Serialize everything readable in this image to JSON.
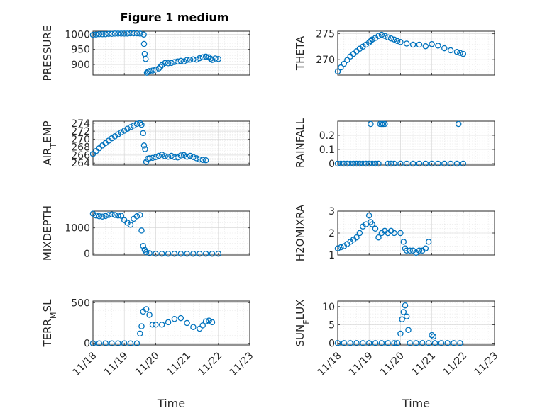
{
  "figure": {
    "title": "Figure 1 medium",
    "marker_color": "#0072bd"
  },
  "chart_data": [
    {
      "type": "scatter",
      "ylabel": "PRESSURE",
      "ylim": [
        865,
        1010
      ],
      "yticks": [
        900,
        950,
        1000
      ],
      "yticklabels": [
        "900",
        "950",
        "1000"
      ],
      "xlim": [
        0,
        5
      ],
      "xticks": [],
      "xticklabels": [],
      "points": [
        [
          0.0,
          998
        ],
        [
          0.1,
          999
        ],
        [
          0.2,
          1000
        ],
        [
          0.3,
          1000
        ],
        [
          0.4,
          1000
        ],
        [
          0.5,
          1001
        ],
        [
          0.6,
          1001
        ],
        [
          0.7,
          1002
        ],
        [
          0.8,
          1002
        ],
        [
          0.9,
          1002
        ],
        [
          1.0,
          1002
        ],
        [
          1.1,
          1002
        ],
        [
          1.2,
          1003
        ],
        [
          1.3,
          1003
        ],
        [
          1.4,
          1003
        ],
        [
          1.5,
          1002
        ],
        [
          1.62,
          999
        ],
        [
          1.63,
          968
        ],
        [
          1.65,
          935
        ],
        [
          1.68,
          918
        ],
        [
          1.72,
          873
        ],
        [
          1.76,
          876
        ],
        [
          1.8,
          878
        ],
        [
          1.9,
          880
        ],
        [
          2.0,
          883
        ],
        [
          2.1,
          887
        ],
        [
          2.15,
          892
        ],
        [
          2.2,
          898
        ],
        [
          2.3,
          905
        ],
        [
          2.4,
          904
        ],
        [
          2.5,
          905
        ],
        [
          2.6,
          908
        ],
        [
          2.7,
          910
        ],
        [
          2.8,
          912
        ],
        [
          2.9,
          910
        ],
        [
          3.0,
          915
        ],
        [
          3.1,
          916
        ],
        [
          3.2,
          917
        ],
        [
          3.3,
          916
        ],
        [
          3.4,
          921
        ],
        [
          3.5,
          924
        ],
        [
          3.6,
          926
        ],
        [
          3.7,
          924
        ],
        [
          3.75,
          919
        ],
        [
          3.8,
          915
        ],
        [
          3.9,
          920
        ],
        [
          4.0,
          918
        ]
      ]
    },
    {
      "type": "scatter",
      "ylabel": "THETA",
      "ylim": [
        267,
        275.5
      ],
      "yticks": [
        270,
        275
      ],
      "yticklabels": [
        "270",
        "275"
      ],
      "xlim": [
        0,
        5
      ],
      "xticks": [],
      "xticklabels": [],
      "points": [
        [
          0.0,
          267.7
        ],
        [
          0.1,
          268.5
        ],
        [
          0.2,
          269.2
        ],
        [
          0.3,
          269.9
        ],
        [
          0.4,
          270.6
        ],
        [
          0.5,
          271.1
        ],
        [
          0.6,
          271.6
        ],
        [
          0.7,
          272.1
        ],
        [
          0.8,
          272.5
        ],
        [
          0.9,
          272.9
        ],
        [
          1.0,
          273.3
        ],
        [
          1.05,
          273.6
        ],
        [
          1.1,
          273.9
        ],
        [
          1.2,
          274.2
        ],
        [
          1.3,
          274.6
        ],
        [
          1.4,
          274.8
        ],
        [
          1.5,
          274.6
        ],
        [
          1.6,
          274.3
        ],
        [
          1.7,
          274.1
        ],
        [
          1.8,
          273.9
        ],
        [
          1.9,
          273.6
        ],
        [
          2.0,
          273.4
        ],
        [
          2.2,
          273.1
        ],
        [
          2.4,
          272.9
        ],
        [
          2.6,
          272.9
        ],
        [
          2.8,
          272.6
        ],
        [
          3.0,
          273.0
        ],
        [
          3.2,
          272.7
        ],
        [
          3.4,
          272.2
        ],
        [
          3.6,
          271.8
        ],
        [
          3.8,
          271.5
        ],
        [
          3.9,
          271.3
        ],
        [
          4.0,
          271.1
        ]
      ]
    },
    {
      "type": "scatter",
      "ylabel": "AIR_TEMP",
      "ylim": [
        263.5,
        274.5
      ],
      "yticks": [
        264,
        266,
        268,
        270,
        272,
        274
      ],
      "yticklabels": [
        "264",
        "266",
        "268",
        "270",
        "272",
        "274"
      ],
      "xlim": [
        0,
        5
      ],
      "xticks": [],
      "xticklabels": [],
      "points": [
        [
          0.0,
          266.3
        ],
        [
          0.1,
          267.0
        ],
        [
          0.2,
          267.7
        ],
        [
          0.3,
          268.4
        ],
        [
          0.4,
          269.0
        ],
        [
          0.5,
          269.6
        ],
        [
          0.6,
          270.2
        ],
        [
          0.7,
          270.7
        ],
        [
          0.8,
          271.2
        ],
        [
          0.9,
          271.7
        ],
        [
          1.0,
          272.1
        ],
        [
          1.1,
          272.6
        ],
        [
          1.2,
          273.0
        ],
        [
          1.3,
          273.4
        ],
        [
          1.4,
          273.8
        ],
        [
          1.5,
          274.0
        ],
        [
          1.55,
          273.6
        ],
        [
          1.6,
          271.5
        ],
        [
          1.63,
          268.4
        ],
        [
          1.66,
          267.5
        ],
        [
          1.7,
          264.3
        ],
        [
          1.75,
          265.1
        ],
        [
          1.8,
          265.2
        ],
        [
          1.9,
          265.3
        ],
        [
          2.0,
          265.5
        ],
        [
          2.1,
          265.8
        ],
        [
          2.2,
          266.1
        ],
        [
          2.3,
          265.7
        ],
        [
          2.4,
          265.6
        ],
        [
          2.5,
          265.8
        ],
        [
          2.6,
          265.5
        ],
        [
          2.7,
          265.4
        ],
        [
          2.8,
          265.9
        ],
        [
          2.9,
          266.0
        ],
        [
          3.0,
          265.6
        ],
        [
          3.1,
          265.8
        ],
        [
          3.2,
          265.5
        ],
        [
          3.3,
          265.2
        ],
        [
          3.4,
          264.9
        ],
        [
          3.5,
          264.8
        ],
        [
          3.6,
          264.7
        ]
      ]
    },
    {
      "type": "scatter",
      "ylabel": "RAINFALL",
      "ylim": [
        -0.01,
        0.3
      ],
      "yticks": [
        0,
        0.1,
        0.2
      ],
      "yticklabels": [
        "0",
        "0.1",
        "0.2"
      ],
      "xlim": [
        0,
        5
      ],
      "xticks": [],
      "xticklabels": [],
      "points": [
        [
          0.0,
          0
        ],
        [
          0.1,
          0
        ],
        [
          0.2,
          0
        ],
        [
          0.3,
          0
        ],
        [
          0.4,
          0
        ],
        [
          0.5,
          0
        ],
        [
          0.6,
          0
        ],
        [
          0.7,
          0
        ],
        [
          0.8,
          0
        ],
        [
          0.9,
          0
        ],
        [
          1.0,
          0
        ],
        [
          1.05,
          0.28
        ],
        [
          1.1,
          0
        ],
        [
          1.2,
          0
        ],
        [
          1.3,
          0
        ],
        [
          1.35,
          0.28
        ],
        [
          1.4,
          0.28
        ],
        [
          1.45,
          0.28
        ],
        [
          1.5,
          0.28
        ],
        [
          1.6,
          0
        ],
        [
          1.7,
          0
        ],
        [
          1.8,
          0
        ],
        [
          2.0,
          0
        ],
        [
          2.2,
          0
        ],
        [
          2.4,
          0
        ],
        [
          2.6,
          0
        ],
        [
          2.8,
          0
        ],
        [
          3.0,
          0
        ],
        [
          3.2,
          0
        ],
        [
          3.4,
          0
        ],
        [
          3.6,
          0
        ],
        [
          3.8,
          0
        ],
        [
          3.85,
          0.28
        ],
        [
          4.0,
          0
        ]
      ]
    },
    {
      "type": "scatter",
      "ylabel": "MIXDEPTH",
      "ylim": [
        -50,
        1650
      ],
      "yticks": [
        0,
        1000
      ],
      "yticklabels": [
        "0",
        "1000"
      ],
      "xlim": [
        0,
        5
      ],
      "xticks": [],
      "xticklabels": [],
      "points": [
        [
          0.0,
          1550
        ],
        [
          0.1,
          1480
        ],
        [
          0.2,
          1450
        ],
        [
          0.3,
          1440
        ],
        [
          0.4,
          1460
        ],
        [
          0.5,
          1500
        ],
        [
          0.6,
          1520
        ],
        [
          0.7,
          1500
        ],
        [
          0.8,
          1480
        ],
        [
          0.9,
          1470
        ],
        [
          1.0,
          1300
        ],
        [
          1.1,
          1200
        ],
        [
          1.2,
          1120
        ],
        [
          1.3,
          1350
        ],
        [
          1.4,
          1450
        ],
        [
          1.5,
          1500
        ],
        [
          1.55,
          900
        ],
        [
          1.6,
          300
        ],
        [
          1.65,
          150
        ],
        [
          1.7,
          60
        ],
        [
          1.8,
          20
        ],
        [
          2.0,
          0
        ],
        [
          2.2,
          0
        ],
        [
          2.4,
          0
        ],
        [
          2.6,
          0
        ],
        [
          2.8,
          0
        ],
        [
          3.0,
          0
        ],
        [
          3.2,
          0
        ],
        [
          3.4,
          0
        ],
        [
          3.6,
          0
        ],
        [
          3.8,
          0
        ],
        [
          4.0,
          0
        ]
      ]
    },
    {
      "type": "scatter",
      "ylabel": "H2OMIXRA",
      "ylim": [
        1.0,
        3.0
      ],
      "yticks": [
        1,
        2,
        3
      ],
      "yticklabels": [
        "1",
        "2",
        "3"
      ],
      "xlim": [
        0,
        5
      ],
      "xticks": [],
      "xticklabels": [],
      "points": [
        [
          0.0,
          1.3
        ],
        [
          0.1,
          1.35
        ],
        [
          0.2,
          1.4
        ],
        [
          0.3,
          1.5
        ],
        [
          0.4,
          1.6
        ],
        [
          0.5,
          1.7
        ],
        [
          0.6,
          1.8
        ],
        [
          0.7,
          2.0
        ],
        [
          0.8,
          2.3
        ],
        [
          0.9,
          2.4
        ],
        [
          1.0,
          2.8
        ],
        [
          1.05,
          2.5
        ],
        [
          1.1,
          2.4
        ],
        [
          1.2,
          2.2
        ],
        [
          1.3,
          1.8
        ],
        [
          1.4,
          2.0
        ],
        [
          1.5,
          2.1
        ],
        [
          1.6,
          2.0
        ],
        [
          1.7,
          2.1
        ],
        [
          1.8,
          2.0
        ],
        [
          2.0,
          2.0
        ],
        [
          2.1,
          1.6
        ],
        [
          2.15,
          1.3
        ],
        [
          2.2,
          1.2
        ],
        [
          2.3,
          1.2
        ],
        [
          2.4,
          1.2
        ],
        [
          2.5,
          1.1
        ],
        [
          2.6,
          1.2
        ],
        [
          2.7,
          1.2
        ],
        [
          2.8,
          1.3
        ],
        [
          2.9,
          1.6
        ]
      ]
    },
    {
      "type": "scatter",
      "ylabel": "TERR_MSL",
      "ylim": [
        -20,
        520
      ],
      "yticks": [
        0,
        500
      ],
      "yticklabels": [
        "0",
        "500"
      ],
      "xlim": [
        0,
        5
      ],
      "xticks": [
        0,
        1,
        2,
        3,
        4,
        5
      ],
      "xticklabels": [
        "11/18",
        "11/19",
        "11/20",
        "11/21",
        "11/22",
        "11/23"
      ],
      "xlabel": "Time",
      "points": [
        [
          0.0,
          0
        ],
        [
          0.2,
          0
        ],
        [
          0.4,
          0
        ],
        [
          0.6,
          0
        ],
        [
          0.8,
          0
        ],
        [
          1.0,
          0
        ],
        [
          1.2,
          0
        ],
        [
          1.4,
          0
        ],
        [
          1.5,
          120
        ],
        [
          1.55,
          210
        ],
        [
          1.6,
          390
        ],
        [
          1.7,
          420
        ],
        [
          1.8,
          350
        ],
        [
          1.9,
          230
        ],
        [
          2.0,
          230
        ],
        [
          2.2,
          230
        ],
        [
          2.4,
          260
        ],
        [
          2.6,
          300
        ],
        [
          2.8,
          310
        ],
        [
          3.0,
          250
        ],
        [
          3.2,
          200
        ],
        [
          3.4,
          180
        ],
        [
          3.5,
          220
        ],
        [
          3.6,
          270
        ],
        [
          3.7,
          280
        ],
        [
          3.8,
          260
        ]
      ]
    },
    {
      "type": "scatter",
      "ylabel": "SUN_FLUX",
      "ylim": [
        -0.5,
        11.5
      ],
      "yticks": [
        0,
        5,
        10
      ],
      "yticklabels": [
        "0",
        "5",
        "10"
      ],
      "xlim": [
        0,
        5
      ],
      "xticks": [
        0,
        1,
        2,
        3,
        4,
        5
      ],
      "xticklabels": [
        "11/18",
        "11/19",
        "11/20",
        "11/21",
        "11/22",
        "11/23"
      ],
      "xlabel": "Time",
      "points": [
        [
          0.0,
          0
        ],
        [
          0.2,
          0
        ],
        [
          0.4,
          0
        ],
        [
          0.6,
          0
        ],
        [
          0.8,
          0
        ],
        [
          1.0,
          0
        ],
        [
          1.2,
          0
        ],
        [
          1.4,
          0
        ],
        [
          1.6,
          0
        ],
        [
          1.8,
          0
        ],
        [
          1.9,
          0
        ],
        [
          2.0,
          2.6
        ],
        [
          2.05,
          6.5
        ],
        [
          2.1,
          8.5
        ],
        [
          2.15,
          10.3
        ],
        [
          2.2,
          7.3
        ],
        [
          2.25,
          3.6
        ],
        [
          2.3,
          0
        ],
        [
          2.5,
          0
        ],
        [
          2.7,
          0
        ],
        [
          2.9,
          0
        ],
        [
          3.0,
          2.2
        ],
        [
          3.05,
          1.8
        ],
        [
          3.1,
          0
        ],
        [
          3.3,
          0
        ],
        [
          3.5,
          0
        ],
        [
          3.7,
          0
        ],
        [
          3.9,
          0
        ]
      ]
    }
  ]
}
